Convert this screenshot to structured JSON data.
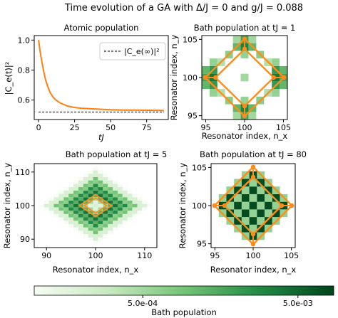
{
  "figure_title": "Time evolution of a GA with Δ/J = 0 and g/J = 0.088",
  "chart_data": [
    {
      "type": "line",
      "title": "Atomic population",
      "xlabel": "tJ",
      "ylabel": "|C_e(t)|²",
      "xlim": [
        -3,
        90
      ],
      "ylim": [
        0.47,
        1.03
      ],
      "xticks": [
        0,
        25,
        50,
        75
      ],
      "yticks": [
        0.6,
        0.8,
        1.0
      ],
      "legend": "top-right",
      "series": [
        {
          "name": "",
          "color": "#ff7f0e",
          "style": "solid",
          "x": [
            0,
            1,
            2,
            3,
            4,
            5,
            6,
            8,
            10,
            12,
            15,
            20,
            25,
            30,
            40,
            50,
            60,
            70,
            80,
            87
          ],
          "y": [
            1.0,
            0.93,
            0.87,
            0.82,
            0.77,
            0.73,
            0.7,
            0.65,
            0.62,
            0.6,
            0.58,
            0.56,
            0.55,
            0.545,
            0.54,
            0.535,
            0.533,
            0.532,
            0.531,
            0.53
          ]
        },
        {
          "name": "|C_e(∞)|²",
          "color": "#000000",
          "style": "dashed",
          "x": [
            0,
            87
          ],
          "y": [
            0.52,
            0.52
          ]
        }
      ]
    },
    {
      "type": "heatmap",
      "title": "Bath population at tJ = 1",
      "xlabel": "Resonator index, n_x",
      "ylabel": "Resonator index, n_y",
      "xlim": [
        94.5,
        105.5
      ],
      "ylim": [
        94.5,
        105.5
      ],
      "xticks": [
        95,
        100,
        105
      ],
      "yticks": [
        95,
        100,
        105
      ],
      "emitter_line": {
        "color": "#ff8c1a",
        "style": "double-diamond"
      },
      "cells": [
        [
          100,
          95,
          0.0018
        ],
        [
          99,
          95,
          0.0005
        ],
        [
          101,
          95,
          0.0005
        ],
        [
          100,
          96,
          0.0032
        ],
        [
          99,
          96,
          0.0012
        ],
        [
          101,
          96,
          0.0012
        ],
        [
          98,
          97,
          0.0007
        ],
        [
          102,
          97,
          0.0007
        ],
        [
          100,
          97,
          0.0006
        ],
        [
          96,
          98,
          0.0006
        ],
        [
          104,
          98,
          0.0006
        ],
        [
          97,
          98,
          0.0004
        ],
        [
          103,
          98,
          0.0004
        ],
        [
          95,
          99,
          0.0012
        ],
        [
          96,
          99,
          0.0022
        ],
        [
          104,
          99,
          0.0022
        ],
        [
          105,
          99,
          0.0012
        ],
        [
          95,
          100,
          0.0018
        ],
        [
          96,
          100,
          0.0038
        ],
        [
          104,
          100,
          0.0038
        ],
        [
          105,
          100,
          0.0018
        ],
        [
          100,
          100,
          0.0005
        ],
        [
          95,
          101,
          0.0012
        ],
        [
          96,
          101,
          0.0022
        ],
        [
          104,
          101,
          0.0022
        ],
        [
          105,
          101,
          0.0012
        ],
        [
          96,
          102,
          0.0006
        ],
        [
          104,
          102,
          0.0006
        ],
        [
          97,
          102,
          0.0004
        ],
        [
          103,
          102,
          0.0004
        ],
        [
          98,
          103,
          0.0007
        ],
        [
          102,
          103,
          0.0007
        ],
        [
          100,
          103,
          0.0006
        ],
        [
          100,
          104,
          0.0032
        ],
        [
          99,
          104,
          0.0012
        ],
        [
          101,
          104,
          0.0012
        ],
        [
          100,
          105,
          0.0018
        ],
        [
          99,
          105,
          0.0005
        ],
        [
          101,
          105,
          0.0005
        ]
      ]
    },
    {
      "type": "heatmap",
      "title": "Bath population at tJ = 5",
      "xlabel": "Resonator index, n_x",
      "ylabel": "Resonator index, n_y",
      "xlim": [
        87.5,
        112.5
      ],
      "ylim": [
        87.5,
        112.5
      ],
      "xticks": [
        90,
        100,
        110
      ],
      "yticks": [
        90,
        100,
        110
      ],
      "emitter_line": {
        "color": "#ff8c1a",
        "style": "double-diamond"
      },
      "blob": {
        "cx": 100,
        "cy": 100,
        "radius": 11,
        "peak": 0.004
      }
    },
    {
      "type": "heatmap",
      "title": "Bath population at tJ = 80",
      "xlabel": "Resonator index, n_x",
      "ylabel": "Resonator index, n_y",
      "xlim": [
        94.5,
        105.5
      ],
      "ylim": [
        94.5,
        105.5
      ],
      "xticks": [
        95,
        100,
        105
      ],
      "yticks": [
        95,
        100,
        105
      ],
      "emitter_line": {
        "color": "#ff8c1a",
        "style": "double-diamond"
      },
      "checker": {
        "center": 100,
        "half_width": 4,
        "peak": 0.0075
      }
    }
  ],
  "colorbar": {
    "label": "Bath population",
    "tick_labels": [
      "5.0e-04",
      "5.0e-03"
    ],
    "tick_values": [
      0.0005,
      0.005
    ],
    "range": [
      0.0001,
      0.0085
    ],
    "scale": "log",
    "colors": [
      "#f7fcf5",
      "#00441b"
    ]
  }
}
